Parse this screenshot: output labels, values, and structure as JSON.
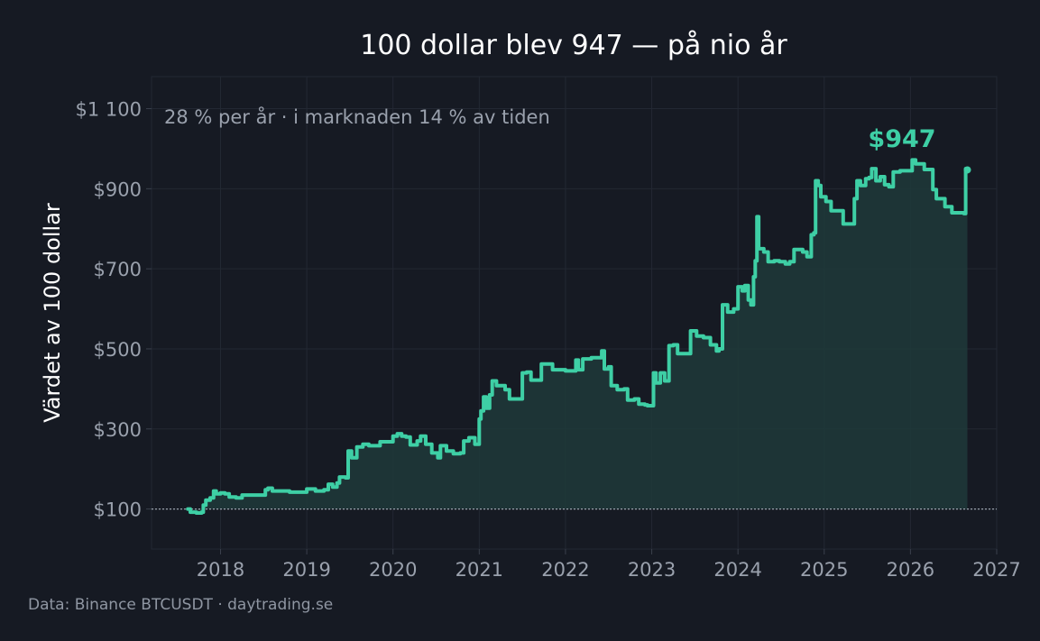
{
  "chart_data": {
    "type": "area",
    "title": "100 dollar blev 947 — på nio år",
    "subtitle": "28 % per år  ·  i marknaden 14 % av tiden",
    "xlabel": "",
    "ylabel": "Värdet av 100 dollar",
    "source": "Data: Binance BTCUSDT  ·  daytrading.se",
    "end_label": "$947",
    "baseline": 100,
    "xlim": [
      2017.2,
      2027.0
    ],
    "ylim": [
      0,
      1180
    ],
    "grid": true,
    "colors": {
      "line": "#3ecfa5",
      "fill": "#1f3a3a",
      "background": "#161a23",
      "grid": "#232833",
      "baseline": "#9aa1ad"
    },
    "x_ticks": [
      2018,
      2019,
      2020,
      2021,
      2022,
      2023,
      2024,
      2025,
      2026,
      2027
    ],
    "y_ticks": [
      {
        "value": 100,
        "label": "$100"
      },
      {
        "value": 300,
        "label": "$300"
      },
      {
        "value": 500,
        "label": "$500"
      },
      {
        "value": 700,
        "label": "$700"
      },
      {
        "value": 900,
        "label": "$900"
      },
      {
        "value": 1100,
        "label": "$1 100"
      }
    ],
    "series": [
      {
        "values": [
          [
            2017.62,
            100
          ],
          [
            2017.65,
            92
          ],
          [
            2017.72,
            90
          ],
          [
            2017.78,
            92
          ],
          [
            2017.8,
            110
          ],
          [
            2017.83,
            122
          ],
          [
            2017.88,
            128
          ],
          [
            2017.92,
            145
          ],
          [
            2017.95,
            138
          ],
          [
            2018.0,
            140
          ],
          [
            2018.05,
            138
          ],
          [
            2018.1,
            130
          ],
          [
            2018.18,
            128
          ],
          [
            2018.25,
            135
          ],
          [
            2018.35,
            135
          ],
          [
            2018.5,
            135
          ],
          [
            2018.52,
            148
          ],
          [
            2018.55,
            152
          ],
          [
            2018.6,
            145
          ],
          [
            2018.7,
            145
          ],
          [
            2018.8,
            142
          ],
          [
            2018.95,
            142
          ],
          [
            2019.0,
            150
          ],
          [
            2019.1,
            145
          ],
          [
            2019.2,
            148
          ],
          [
            2019.25,
            162
          ],
          [
            2019.3,
            155
          ],
          [
            2019.35,
            165
          ],
          [
            2019.38,
            180
          ],
          [
            2019.45,
            178
          ],
          [
            2019.48,
            245
          ],
          [
            2019.52,
            228
          ],
          [
            2019.58,
            255
          ],
          [
            2019.65,
            262
          ],
          [
            2019.72,
            258
          ],
          [
            2019.8,
            258
          ],
          [
            2019.85,
            268
          ],
          [
            2019.95,
            268
          ],
          [
            2020.0,
            282
          ],
          [
            2020.05,
            288
          ],
          [
            2020.1,
            282
          ],
          [
            2020.15,
            280
          ],
          [
            2020.2,
            260
          ],
          [
            2020.28,
            270
          ],
          [
            2020.32,
            282
          ],
          [
            2020.38,
            262
          ],
          [
            2020.45,
            240
          ],
          [
            2020.52,
            228
          ],
          [
            2020.55,
            258
          ],
          [
            2020.62,
            245
          ],
          [
            2020.7,
            238
          ],
          [
            2020.78,
            240
          ],
          [
            2020.82,
            270
          ],
          [
            2020.88,
            278
          ],
          [
            2020.95,
            262
          ],
          [
            2021.0,
            325
          ],
          [
            2021.02,
            345
          ],
          [
            2021.05,
            380
          ],
          [
            2021.08,
            352
          ],
          [
            2021.12,
            385
          ],
          [
            2021.15,
            420
          ],
          [
            2021.2,
            408
          ],
          [
            2021.3,
            398
          ],
          [
            2021.35,
            375
          ],
          [
            2021.45,
            375
          ],
          [
            2021.5,
            440
          ],
          [
            2021.55,
            442
          ],
          [
            2021.6,
            422
          ],
          [
            2021.7,
            422
          ],
          [
            2021.72,
            462
          ],
          [
            2021.85,
            448
          ],
          [
            2022.0,
            445
          ],
          [
            2022.1,
            445
          ],
          [
            2022.12,
            472
          ],
          [
            2022.15,
            448
          ],
          [
            2022.2,
            475
          ],
          [
            2022.3,
            478
          ],
          [
            2022.4,
            478
          ],
          [
            2022.42,
            495
          ],
          [
            2022.45,
            450
          ],
          [
            2022.5,
            455
          ],
          [
            2022.53,
            408
          ],
          [
            2022.6,
            398
          ],
          [
            2022.68,
            400
          ],
          [
            2022.72,
            372
          ],
          [
            2022.8,
            375
          ],
          [
            2022.85,
            362
          ],
          [
            2022.92,
            360
          ],
          [
            2022.95,
            358
          ],
          [
            2023.02,
            440
          ],
          [
            2023.05,
            415
          ],
          [
            2023.1,
            440
          ],
          [
            2023.15,
            420
          ],
          [
            2023.2,
            508
          ],
          [
            2023.25,
            510
          ],
          [
            2023.3,
            488
          ],
          [
            2023.4,
            488
          ],
          [
            2023.45,
            545
          ],
          [
            2023.52,
            532
          ],
          [
            2023.6,
            528
          ],
          [
            2023.68,
            510
          ],
          [
            2023.75,
            495
          ],
          [
            2023.78,
            500
          ],
          [
            2023.82,
            610
          ],
          [
            2023.88,
            592
          ],
          [
            2023.95,
            600
          ],
          [
            2024.0,
            655
          ],
          [
            2024.05,
            645
          ],
          [
            2024.08,
            658
          ],
          [
            2024.12,
            622
          ],
          [
            2024.15,
            610
          ],
          [
            2024.18,
            680
          ],
          [
            2024.2,
            720
          ],
          [
            2024.22,
            830
          ],
          [
            2024.24,
            750
          ],
          [
            2024.3,
            742
          ],
          [
            2024.35,
            718
          ],
          [
            2024.42,
            720
          ],
          [
            2024.48,
            718
          ],
          [
            2024.55,
            712
          ],
          [
            2024.6,
            718
          ],
          [
            2024.65,
            748
          ],
          [
            2024.75,
            742
          ],
          [
            2024.8,
            730
          ],
          [
            2024.85,
            785
          ],
          [
            2024.88,
            790
          ],
          [
            2024.9,
            920
          ],
          [
            2024.93,
            908
          ],
          [
            2024.96,
            880
          ],
          [
            2025.02,
            868
          ],
          [
            2025.08,
            845
          ],
          [
            2025.18,
            845
          ],
          [
            2025.22,
            812
          ],
          [
            2025.3,
            812
          ],
          [
            2025.35,
            875
          ],
          [
            2025.38,
            920
          ],
          [
            2025.42,
            908
          ],
          [
            2025.48,
            925
          ],
          [
            2025.52,
            928
          ],
          [
            2025.55,
            950
          ],
          [
            2025.6,
            920
          ],
          [
            2025.65,
            930
          ],
          [
            2025.7,
            910
          ],
          [
            2025.75,
            905
          ],
          [
            2025.8,
            942
          ],
          [
            2025.88,
            945
          ],
          [
            2025.98,
            945
          ],
          [
            2026.02,
            972
          ],
          [
            2026.06,
            962
          ],
          [
            2026.12,
            962
          ],
          [
            2026.16,
            948
          ],
          [
            2026.22,
            948
          ],
          [
            2026.26,
            898
          ],
          [
            2026.3,
            875
          ],
          [
            2026.36,
            875
          ],
          [
            2026.4,
            855
          ],
          [
            2026.48,
            840
          ],
          [
            2026.62,
            838
          ],
          [
            2026.64,
            950
          ],
          [
            2026.66,
            947
          ]
        ]
      }
    ]
  }
}
